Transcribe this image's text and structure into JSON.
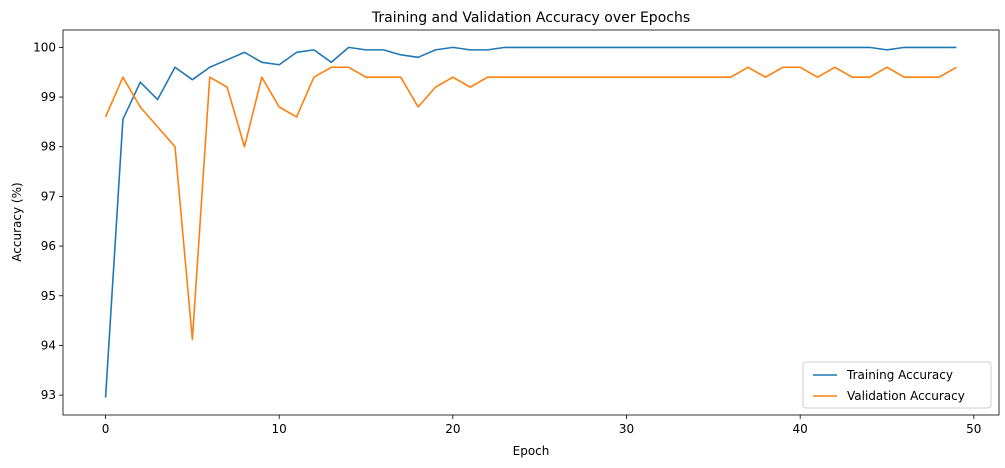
{
  "chart_data": {
    "type": "line",
    "title": "Training and Validation Accuracy over Epochs",
    "xlabel": "Epoch",
    "ylabel": "Accuracy (%)",
    "xlim": [
      -2.45,
      51.45
    ],
    "ylim": [
      92.6,
      100.35
    ],
    "xticks": [
      0,
      10,
      20,
      30,
      40,
      50
    ],
    "yticks": [
      93,
      94,
      95,
      96,
      97,
      98,
      99,
      100
    ],
    "grid": false,
    "legend_position": "lower-right",
    "x": [
      0,
      1,
      2,
      3,
      4,
      5,
      6,
      7,
      8,
      9,
      10,
      11,
      12,
      13,
      14,
      15,
      16,
      17,
      18,
      19,
      20,
      21,
      22,
      23,
      24,
      25,
      26,
      27,
      28,
      29,
      30,
      31,
      32,
      33,
      34,
      35,
      36,
      37,
      38,
      39,
      40,
      41,
      42,
      43,
      44,
      45,
      46,
      47,
      48,
      49
    ],
    "series": [
      {
        "name": "Training Accuracy",
        "color": "#1f77b4",
        "values": [
          92.95,
          98.55,
          99.3,
          98.95,
          99.6,
          99.35,
          99.6,
          99.75,
          99.9,
          99.7,
          99.65,
          99.9,
          99.95,
          99.7,
          100,
          99.95,
          99.95,
          99.85,
          99.8,
          99.95,
          100,
          99.95,
          99.95,
          100,
          100,
          100,
          100,
          100,
          100,
          100,
          100,
          100,
          100,
          100,
          100,
          100,
          100,
          100,
          100,
          100,
          100,
          100,
          100,
          100,
          100,
          99.95,
          100,
          100,
          100,
          100
        ]
      },
      {
        "name": "Validation Accuracy",
        "color": "#ff7f0e",
        "values": [
          98.6,
          99.4,
          98.8,
          98.4,
          98.0,
          94.12,
          99.4,
          99.2,
          98.0,
          99.4,
          98.8,
          98.6,
          99.4,
          99.6,
          99.6,
          99.4,
          99.4,
          99.4,
          98.8,
          99.2,
          99.4,
          99.2,
          99.4,
          99.4,
          99.4,
          99.4,
          99.4,
          99.4,
          99.4,
          99.4,
          99.4,
          99.4,
          99.4,
          99.4,
          99.4,
          99.4,
          99.4,
          99.6,
          99.4,
          99.6,
          99.6,
          99.4,
          99.6,
          99.4,
          99.4,
          99.6,
          99.4,
          99.4,
          99.4,
          99.6
        ]
      }
    ]
  }
}
